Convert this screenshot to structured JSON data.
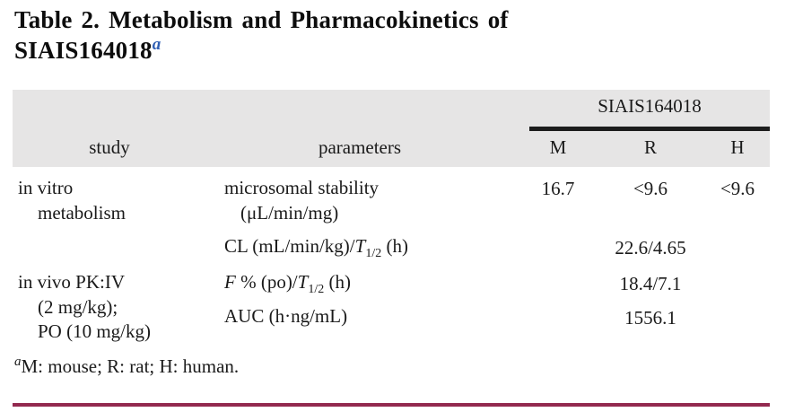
{
  "title": {
    "line1": "Table 2. Metabolism and Pharmacokinetics of",
    "line2": "SIAIS164018",
    "footnote_marker": "a"
  },
  "table": {
    "group_header": "SIAIS164018",
    "column_headers": {
      "study": "study",
      "parameters": "parameters",
      "m": "M",
      "r": "R",
      "h": "H"
    },
    "rows": {
      "invitro": {
        "study_line1": "in vitro",
        "study_line2": "metabolism",
        "microsomal_line1": "microsomal stability",
        "microsomal_line2": "(μL/min/mg)",
        "value_m": "16.7",
        "value_r": "<9.6",
        "value_h": "<9.6",
        "cl_prefix": "CL (mL/min/kg)/",
        "cl_t": "T",
        "cl_t_sub": "1/2",
        "cl_suffix": " (h)",
        "cl_value_span": "22.6/4.65"
      },
      "invivo": {
        "study_line1": "in vivo PK:IV",
        "study_line2": "(2 mg/kg);",
        "study_line3": "PO (10 mg/kg)",
        "f_symbol": "F",
        "f_rest": " % (po)/",
        "f_t": "T",
        "f_t_sub": "1/2",
        "f_suffix": " (h)",
        "f_value_span": "18.4/7.1",
        "auc_label": "AUC (h·ng/mL)",
        "auc_value_span": "1556.1"
      }
    }
  },
  "footnote": {
    "marker": "a",
    "text": "M: mouse; R: rat; H: human."
  },
  "colors": {
    "accent_blue": "#2f5eb3",
    "header_gray": "#e6e5e5",
    "group_rule_black": "#1c1c1c",
    "bottom_rule_maroon": "#93294f"
  }
}
